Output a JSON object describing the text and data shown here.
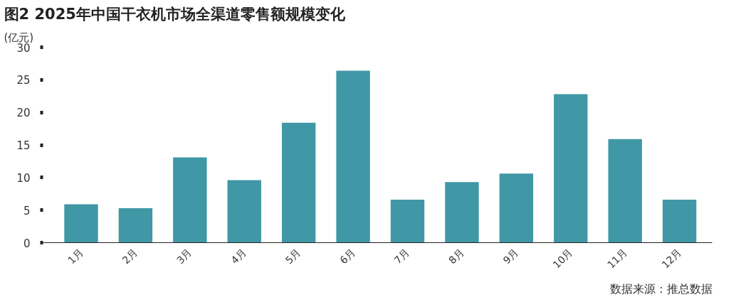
{
  "chart_data": {
    "type": "bar",
    "title": "图2  2025年中国干衣机市场全渠道零售额规模变化",
    "ylabel": "(亿元)",
    "categories": [
      "1月",
      "2月",
      "3月",
      "4月",
      "5月",
      "6月",
      "7月",
      "8月",
      "9月",
      "10月",
      "11月",
      "12月"
    ],
    "values": [
      5.9,
      5.3,
      13.1,
      9.6,
      18.4,
      26.4,
      6.6,
      9.3,
      10.6,
      22.8,
      15.9,
      6.6
    ],
    "color": "#4097a5",
    "ylim": [
      0,
      30
    ],
    "yticks": [
      0,
      5,
      10,
      15,
      20,
      25,
      30
    ],
    "grid": false,
    "annotations": [
      "数据来源：推总数据"
    ]
  }
}
